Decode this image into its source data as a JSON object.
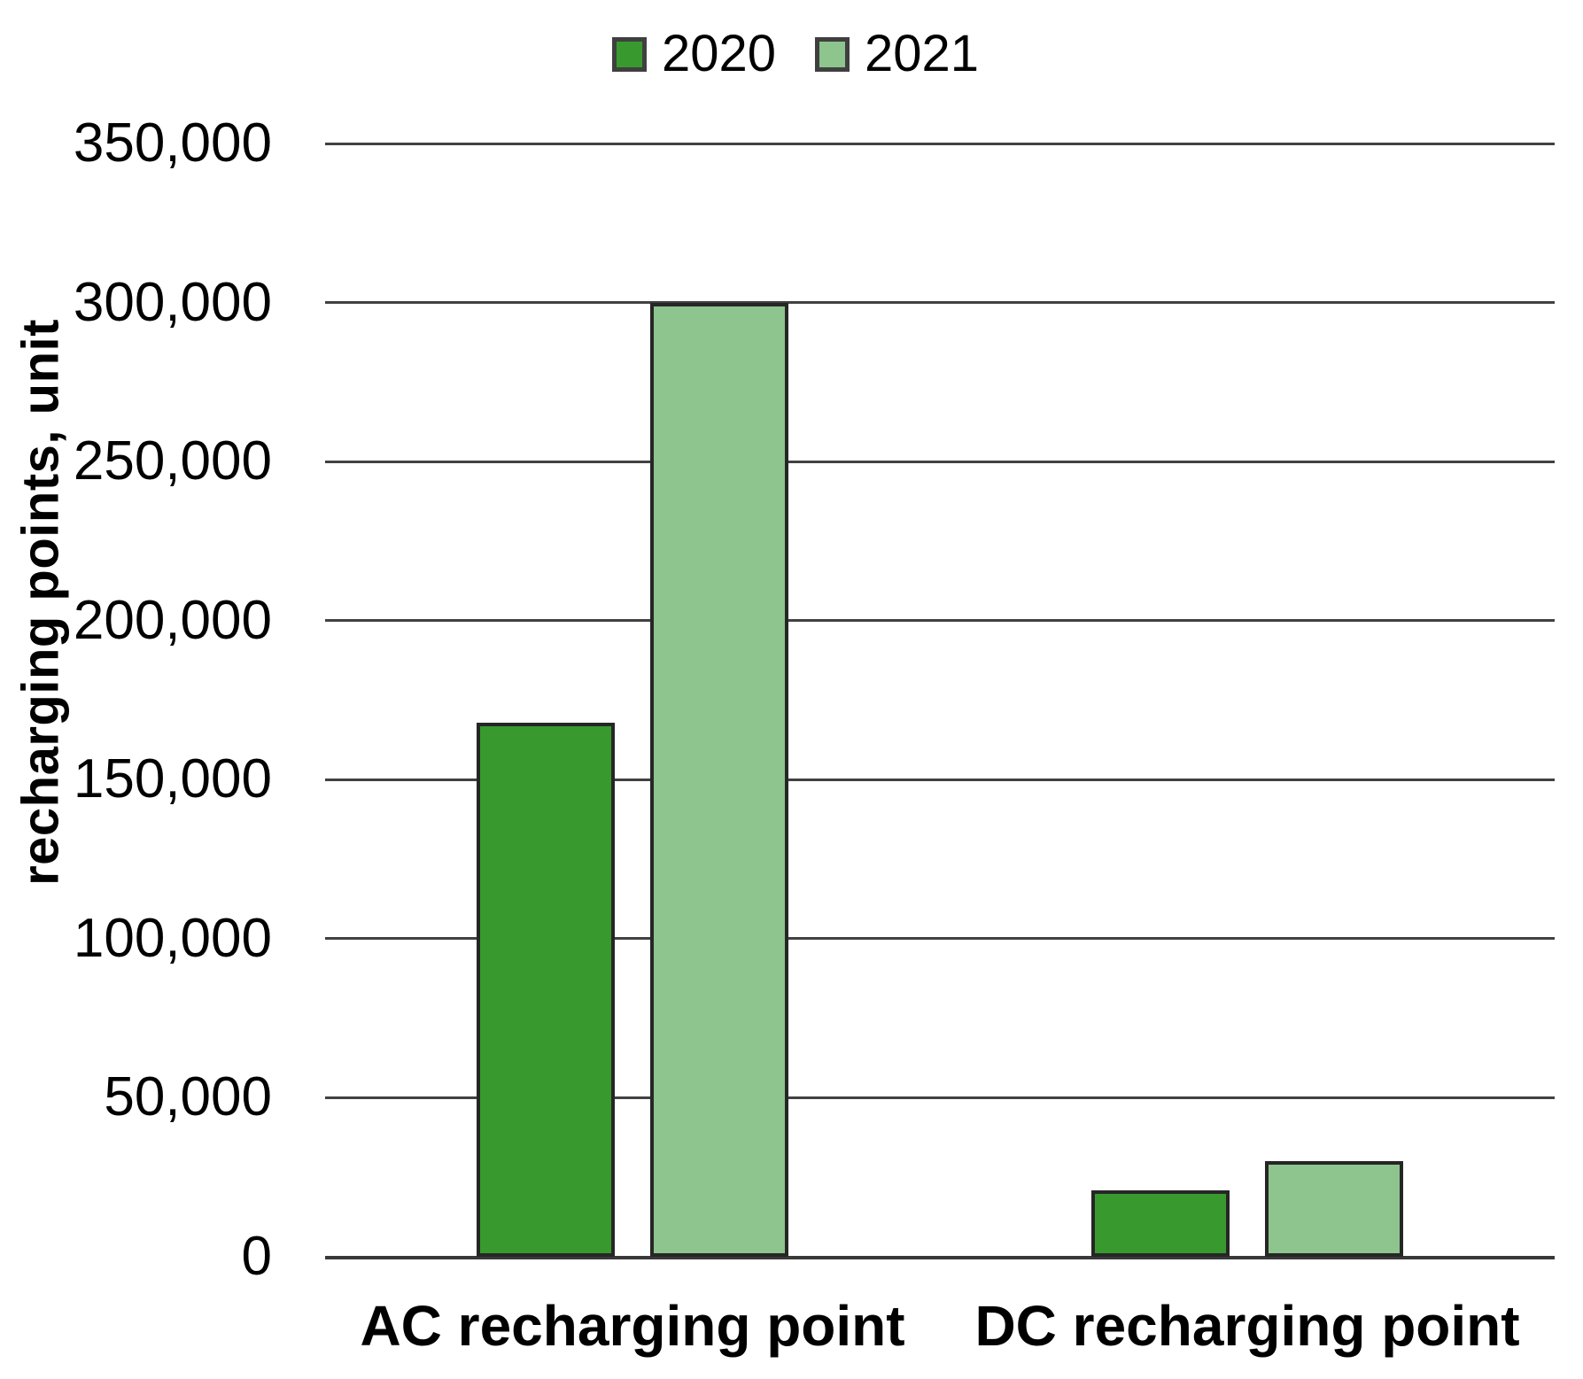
{
  "chart_data": {
    "type": "bar",
    "title": "",
    "categories": [
      "AC recharging point",
      "DC recharging point"
    ],
    "series": [
      {
        "name": "2020",
        "color": "#389A2E",
        "values": [
          168000,
          21000
        ]
      },
      {
        "name": "2021",
        "color": "#8EC48E",
        "values": [
          300000,
          30000
        ]
      }
    ],
    "xlabel": "",
    "ylabel": "recharging points, unit",
    "ylim": [
      0,
      350000
    ],
    "ytick_step": 50000,
    "ytick_labels": [
      "0",
      "50,000",
      "100,000",
      "150,000",
      "200,000",
      "250,000",
      "300,000",
      "350,000"
    ],
    "grid": true,
    "legend_position": "top-center",
    "colors": {
      "background": "#FFFFFF",
      "gridline": "#414141",
      "bar_border": "#262626",
      "legend_swatch_border": "#3F3F3F",
      "text": "#000000"
    }
  }
}
